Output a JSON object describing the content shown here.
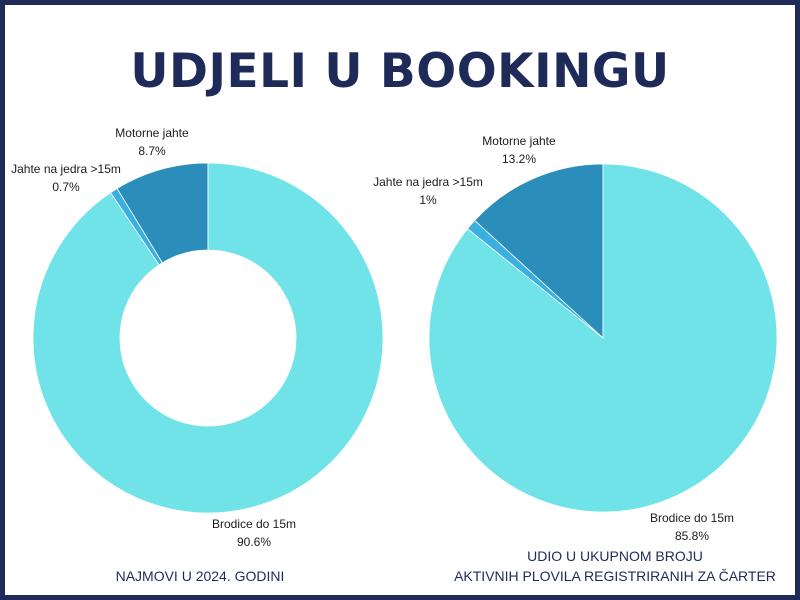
{
  "title": "UDJELI U BOOKINGU",
  "colors": {
    "border": "#1e2b58",
    "title": "#1e2b58",
    "brodice": "#6fe3e8",
    "jahte_jedra": "#3aafe0",
    "motorne": "#2a8dba"
  },
  "chart_data": [
    {
      "type": "pie",
      "subtype": "donut",
      "caption": "NAJMOVI U 2024. GODINI",
      "start": "top, counter-clockwise",
      "slices": [
        {
          "label": "Motorne jahte",
          "value": 8.7,
          "value_text": "8.7%",
          "color": "#2a8dba"
        },
        {
          "label": "Jahte na jedra >15m",
          "value": 0.7,
          "value_text": "0.7%",
          "color": "#3aafe0"
        },
        {
          "label": "Brodice do 15m",
          "value": 90.6,
          "value_text": "90.6%",
          "color": "#6fe3e8"
        }
      ]
    },
    {
      "type": "pie",
      "caption_line1": "UDIO U UKUPNOM BROJU",
      "caption_line2": "AKTIVNIH PLOVILA REGISTRIRANIH ZA ČARTER",
      "start": "top, counter-clockwise",
      "slices": [
        {
          "label": "Motorne jahte",
          "value": 13.2,
          "value_text": "13.2%",
          "color": "#2a8dba"
        },
        {
          "label": "Jahte na jedra >15m",
          "value": 1,
          "value_text": "1%",
          "color": "#3aafe0"
        },
        {
          "label": "Brodice do 15m",
          "value": 85.8,
          "value_text": "85.8%",
          "color": "#6fe3e8"
        }
      ]
    }
  ]
}
